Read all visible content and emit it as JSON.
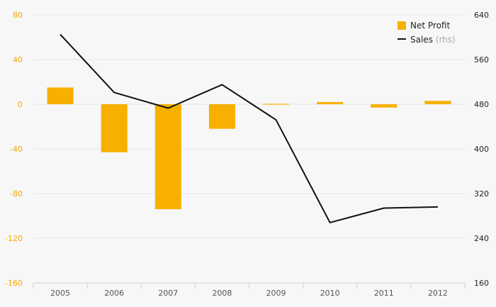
{
  "colors": {
    "bar": "#f7b000",
    "line": "#111111",
    "grid": "#e6e6e6",
    "left_axis_text": "#f5a800"
  },
  "legend": {
    "bar_label": "Net Profit",
    "line_label": "Sales",
    "line_suffix": "(rhs)"
  },
  "chart_data": {
    "type": "bar+line",
    "categories": [
      "2005",
      "2006",
      "2007",
      "2008",
      "2009",
      "2010",
      "2011",
      "2012"
    ],
    "series": [
      {
        "name": "Net Profit",
        "type": "bar",
        "axis": "left",
        "values": [
          15,
          -43,
          -94,
          -22,
          -0.5,
          2,
          -3,
          3
        ]
      },
      {
        "name": "Sales",
        "type": "line",
        "axis": "right",
        "values": [
          605,
          501,
          473,
          515,
          452,
          268,
          294,
          296
        ]
      }
    ],
    "ylim_left": [
      -160,
      80
    ],
    "yticks_left": [
      80,
      40,
      0,
      -40,
      -80,
      -120,
      -160
    ],
    "ylim_right": [
      160,
      640
    ],
    "yticks_right": [
      640,
      560,
      480,
      400,
      320,
      240,
      160
    ],
    "grid": true,
    "legend_position": "top-right"
  }
}
